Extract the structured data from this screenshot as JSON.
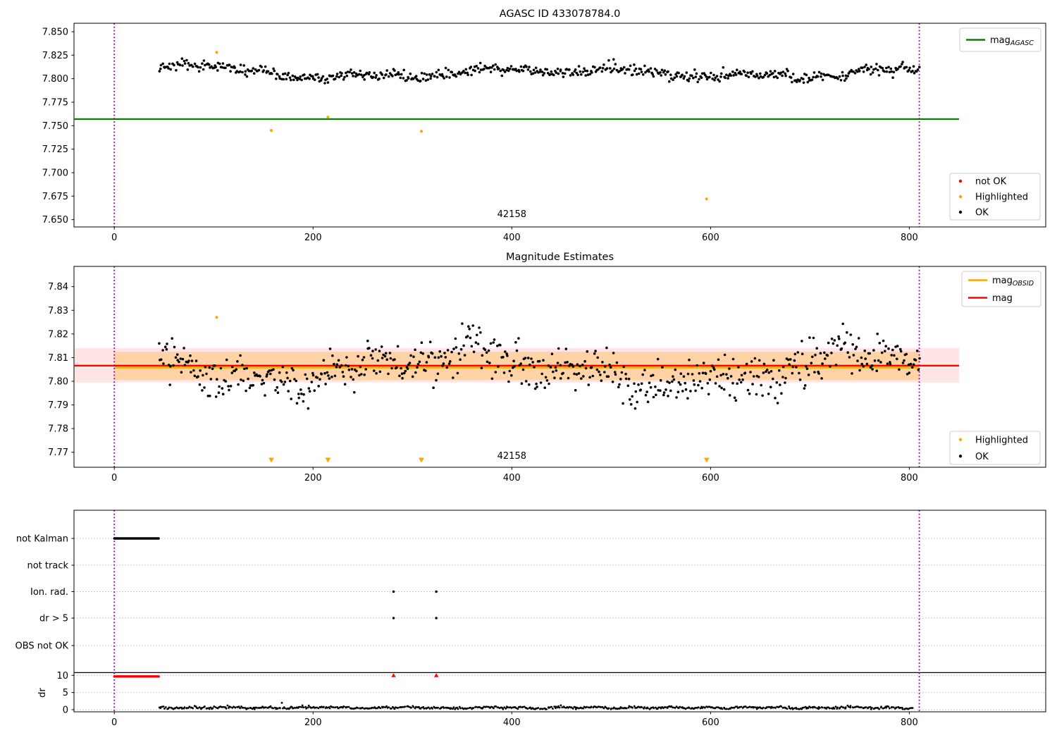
{
  "figure": {
    "background": "#ffffff"
  },
  "colors": {
    "ok": "#000000",
    "not_ok": "#ff0000",
    "highlighted": "#ffa500",
    "mag_agasc_line": "#008000",
    "mag_line": "#ff0000",
    "mag_obsid_line": "#ffa500",
    "band_red": "rgba(255,0,0,0.10)",
    "band_orange": "rgba(255,165,0,0.28)",
    "vline": "#8F008F",
    "grid": "#bbbbbb",
    "spine": "#000000"
  },
  "chart_data": [
    {
      "type": "scatter",
      "title": "AGASC ID 433078784.0",
      "xlabel": "",
      "ylabel": "",
      "xlim": [
        -40,
        937
      ],
      "ylim": [
        7.642,
        7.859
      ],
      "xticks": [
        0,
        200,
        400,
        600,
        800
      ],
      "xtick_labels": [
        "0",
        "200",
        "400",
        "600",
        "800"
      ],
      "yticks": [
        7.65,
        7.675,
        7.7,
        7.725,
        7.75,
        7.775,
        7.8,
        7.825,
        7.85
      ],
      "ytick_labels": [
        "7.650",
        "7.675",
        "7.700",
        "7.725",
        "7.750",
        "7.775",
        "7.800",
        "7.825",
        "7.850"
      ],
      "obsid": {
        "label": "42158",
        "x": 400
      },
      "vlines": {
        "xs": [
          0,
          810
        ],
        "color": "#8F008F",
        "style": "dotted"
      },
      "agasc_line": {
        "value": 7.757,
        "color": "#008000",
        "x_start": -40,
        "x_end": 850
      },
      "ok": {
        "n": 640,
        "x_start": 45,
        "x_end": 810,
        "mean": 7.806,
        "noise": 0.0028,
        "waves": [
          [
            0.004,
            400,
            0.9
          ],
          [
            0.0025,
            130,
            2.0
          ],
          [
            0.0015,
            43,
            4.4
          ]
        ],
        "boost": [
          0.007,
          62,
          40
        ],
        "clip": [
          7.789,
          7.8285
        ],
        "seed": 12345,
        "color": "#000000"
      },
      "highlighted": {
        "color": "#ffa500",
        "points": [
          [
            103,
            7.828
          ],
          [
            158,
            7.745
          ],
          [
            215,
            7.759
          ],
          [
            309,
            7.744
          ],
          [
            596,
            7.672
          ]
        ]
      },
      "not_ok": {
        "color": "#ff0000",
        "points": []
      },
      "legend_line": {
        "items": [
          {
            "type": "line",
            "color": "#008000",
            "label": "mag",
            "sub": "AGASC"
          }
        ]
      },
      "legend_markers": {
        "items": [
          {
            "type": "dot",
            "color": "#ff0000",
            "label": "not OK"
          },
          {
            "type": "dot",
            "color": "#ffa500",
            "label": "Highlighted"
          },
          {
            "type": "dot",
            "color": "#000000",
            "label": "OK"
          }
        ]
      }
    },
    {
      "type": "scatter",
      "title": "Magnitude Estimates",
      "xlabel": "",
      "ylabel": "",
      "xlim": [
        -40,
        937
      ],
      "ylim": [
        7.7636,
        7.8486
      ],
      "xticks": [
        0,
        200,
        400,
        600,
        800
      ],
      "xtick_labels": [
        "0",
        "200",
        "400",
        "600",
        "800"
      ],
      "yticks": [
        7.77,
        7.78,
        7.79,
        7.8,
        7.81,
        7.82,
        7.83,
        7.84
      ],
      "ytick_labels": [
        "7.77",
        "7.78",
        "7.79",
        "7.80",
        "7.81",
        "7.82",
        "7.83",
        "7.84"
      ],
      "obsid": {
        "label": "42158",
        "x": 400
      },
      "vlines": {
        "xs": [
          0,
          810
        ],
        "color": "#8F008F",
        "style": "dotted"
      },
      "mag_line": {
        "value": 7.8066,
        "color": "#ff0000",
        "x_start": -40,
        "x_end": 850
      },
      "obsid_line": {
        "value": 7.8058,
        "color": "#ffa500",
        "x_start": 0,
        "x_end": 810
      },
      "band_red": {
        "lo": 7.7995,
        "hi": 7.814,
        "x_start": -40,
        "x_end": 850,
        "color": "rgba(255,0,0,0.10)"
      },
      "band_orange": {
        "lo": 7.8005,
        "hi": 7.8125,
        "x_start": 0,
        "x_end": 810,
        "color": "rgba(255,165,0,0.28)"
      },
      "ok": {
        "n": 640,
        "x_start": 45,
        "x_end": 810,
        "mean": 7.8053,
        "noise": 0.0042,
        "waves": [
          [
            0.006,
            420,
            2.6
          ],
          [
            0.003,
            117,
            0.8
          ],
          [
            0.0022,
            47,
            3.9
          ]
        ],
        "boost": [
          0.01,
          55,
          30
        ],
        "clip": [
          7.7885,
          7.8285
        ],
        "seed": 777,
        "color": "#000000"
      },
      "highlighted": {
        "color": "#ffa500",
        "points": [
          [
            103,
            7.827
          ]
        ]
      },
      "clipped_low": {
        "color": "#ffa500",
        "xs": [
          158,
          215,
          309,
          596
        ],
        "y": 7.766
      },
      "legend_line": {
        "items": [
          {
            "type": "line",
            "color": "#ffa500",
            "label": "mag",
            "sub": "OBSID"
          },
          {
            "type": "line",
            "color": "#ff0000",
            "label": "mag",
            "sub": ""
          }
        ]
      },
      "legend_markers": {
        "items": [
          {
            "type": "dot",
            "color": "#ffa500",
            "label": "Highlighted"
          },
          {
            "type": "dot",
            "color": "#000000",
            "label": "OK"
          }
        ]
      }
    },
    {
      "type": "flags",
      "title": "",
      "categories": [
        "not Kalman",
        "not track",
        "Ion. rad.",
        "dr > 5",
        "OBS not OK"
      ],
      "dr_label": "dr",
      "dr_ticks": [
        0,
        5,
        10
      ],
      "dr_tick_labels": [
        "0",
        "5",
        "10"
      ],
      "xticks": [
        0,
        200,
        400,
        600,
        800
      ],
      "xtick_labels": [
        "0",
        "200",
        "400",
        "600",
        "800"
      ],
      "vlines": {
        "xs": [
          0,
          810
        ],
        "color": "#8F008F",
        "style": "dotted"
      },
      "flag_runs": [
        {
          "category": "not Kalman",
          "x_start": 0,
          "x_end": 45,
          "color": "#000000"
        }
      ],
      "flag_points": [
        {
          "category": "Ion. rad.",
          "xs": [
            281,
            324
          ],
          "color": "#000000"
        },
        {
          "category": "dr > 5",
          "xs": [
            281,
            324
          ],
          "color": "#000000"
        }
      ],
      "dr_not_ok_run": {
        "x_start": 0,
        "x_end": 45,
        "value": 9.7,
        "color": "#ff0000"
      },
      "dr_clipped": {
        "xs": [
          281,
          324
        ],
        "value": 10,
        "color": "#ff0000"
      },
      "dr_ok": {
        "n": 640,
        "x_start": 45,
        "x_end": 803,
        "mean": 0.6,
        "noise": 0.18,
        "waves": [
          [
            0.15,
            37,
            1.0
          ],
          [
            0.1,
            90,
            0.0
          ]
        ],
        "clip": [
          0.15,
          2.6
        ],
        "spikes": [
          [
            169,
            2.0
          ]
        ],
        "seed": 999,
        "color": "#000000"
      }
    }
  ]
}
